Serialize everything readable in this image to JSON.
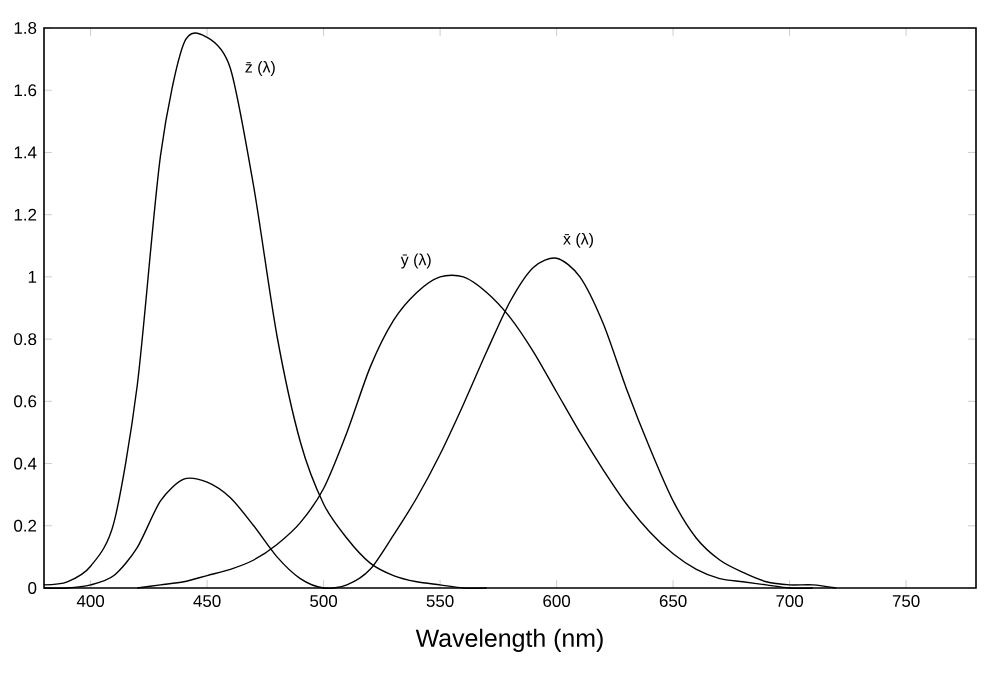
{
  "chart_data": {
    "type": "line",
    "xlabel": "Wavelength (nm)",
    "xlim": [
      380,
      780
    ],
    "xticks": [
      400,
      450,
      500,
      550,
      600,
      650,
      700,
      750
    ],
    "ylim": [
      0,
      1.8
    ],
    "yticks": [
      0,
      0.2,
      0.4,
      0.6,
      0.8,
      1,
      1.2,
      1.4,
      1.6,
      1.8
    ],
    "marker": "none",
    "line_style": "solid",
    "series": [
      {
        "name": "x̄ (λ)",
        "color": "#000000",
        "x": [
          380,
          390,
          400,
          410,
          420,
          430,
          440,
          450,
          460,
          470,
          480,
          490,
          500,
          510,
          520,
          530,
          540,
          550,
          560,
          570,
          580,
          590,
          600,
          610,
          620,
          630,
          640,
          650,
          660,
          670,
          680,
          690,
          700,
          710,
          720
        ],
        "values": [
          0,
          0,
          0.01,
          0.04,
          0.13,
          0.28,
          0.35,
          0.34,
          0.29,
          0.2,
          0.1,
          0.03,
          0,
          0.01,
          0.06,
          0.17,
          0.29,
          0.43,
          0.59,
          0.76,
          0.92,
          1.03,
          1.06,
          1,
          0.85,
          0.64,
          0.45,
          0.28,
          0.16,
          0.09,
          0.05,
          0.02,
          0.01,
          0.01,
          0
        ]
      },
      {
        "name": "ȳ (λ)",
        "color": "#000000",
        "x": [
          420,
          430,
          440,
          450,
          460,
          470,
          480,
          490,
          500,
          510,
          520,
          530,
          540,
          550,
          560,
          570,
          580,
          590,
          600,
          610,
          620,
          630,
          640,
          650,
          660,
          670,
          680,
          690,
          700,
          710
        ],
        "values": [
          0,
          0.01,
          0.02,
          0.04,
          0.06,
          0.09,
          0.14,
          0.21,
          0.32,
          0.5,
          0.71,
          0.86,
          0.95,
          1,
          1,
          0.95,
          0.87,
          0.76,
          0.63,
          0.5,
          0.38,
          0.27,
          0.18,
          0.11,
          0.06,
          0.03,
          0.02,
          0.01,
          0,
          0
        ]
      },
      {
        "name": "z̄ (λ)",
        "color": "#000000",
        "x": [
          380,
          390,
          400,
          410,
          420,
          430,
          440,
          450,
          460,
          470,
          480,
          490,
          500,
          510,
          520,
          530,
          540,
          550,
          560,
          570
        ],
        "values": [
          0.01,
          0.02,
          0.07,
          0.21,
          0.65,
          1.39,
          1.75,
          1.77,
          1.67,
          1.29,
          0.81,
          0.47,
          0.27,
          0.16,
          0.08,
          0.04,
          0.02,
          0.01,
          0,
          0
        ]
      }
    ]
  }
}
